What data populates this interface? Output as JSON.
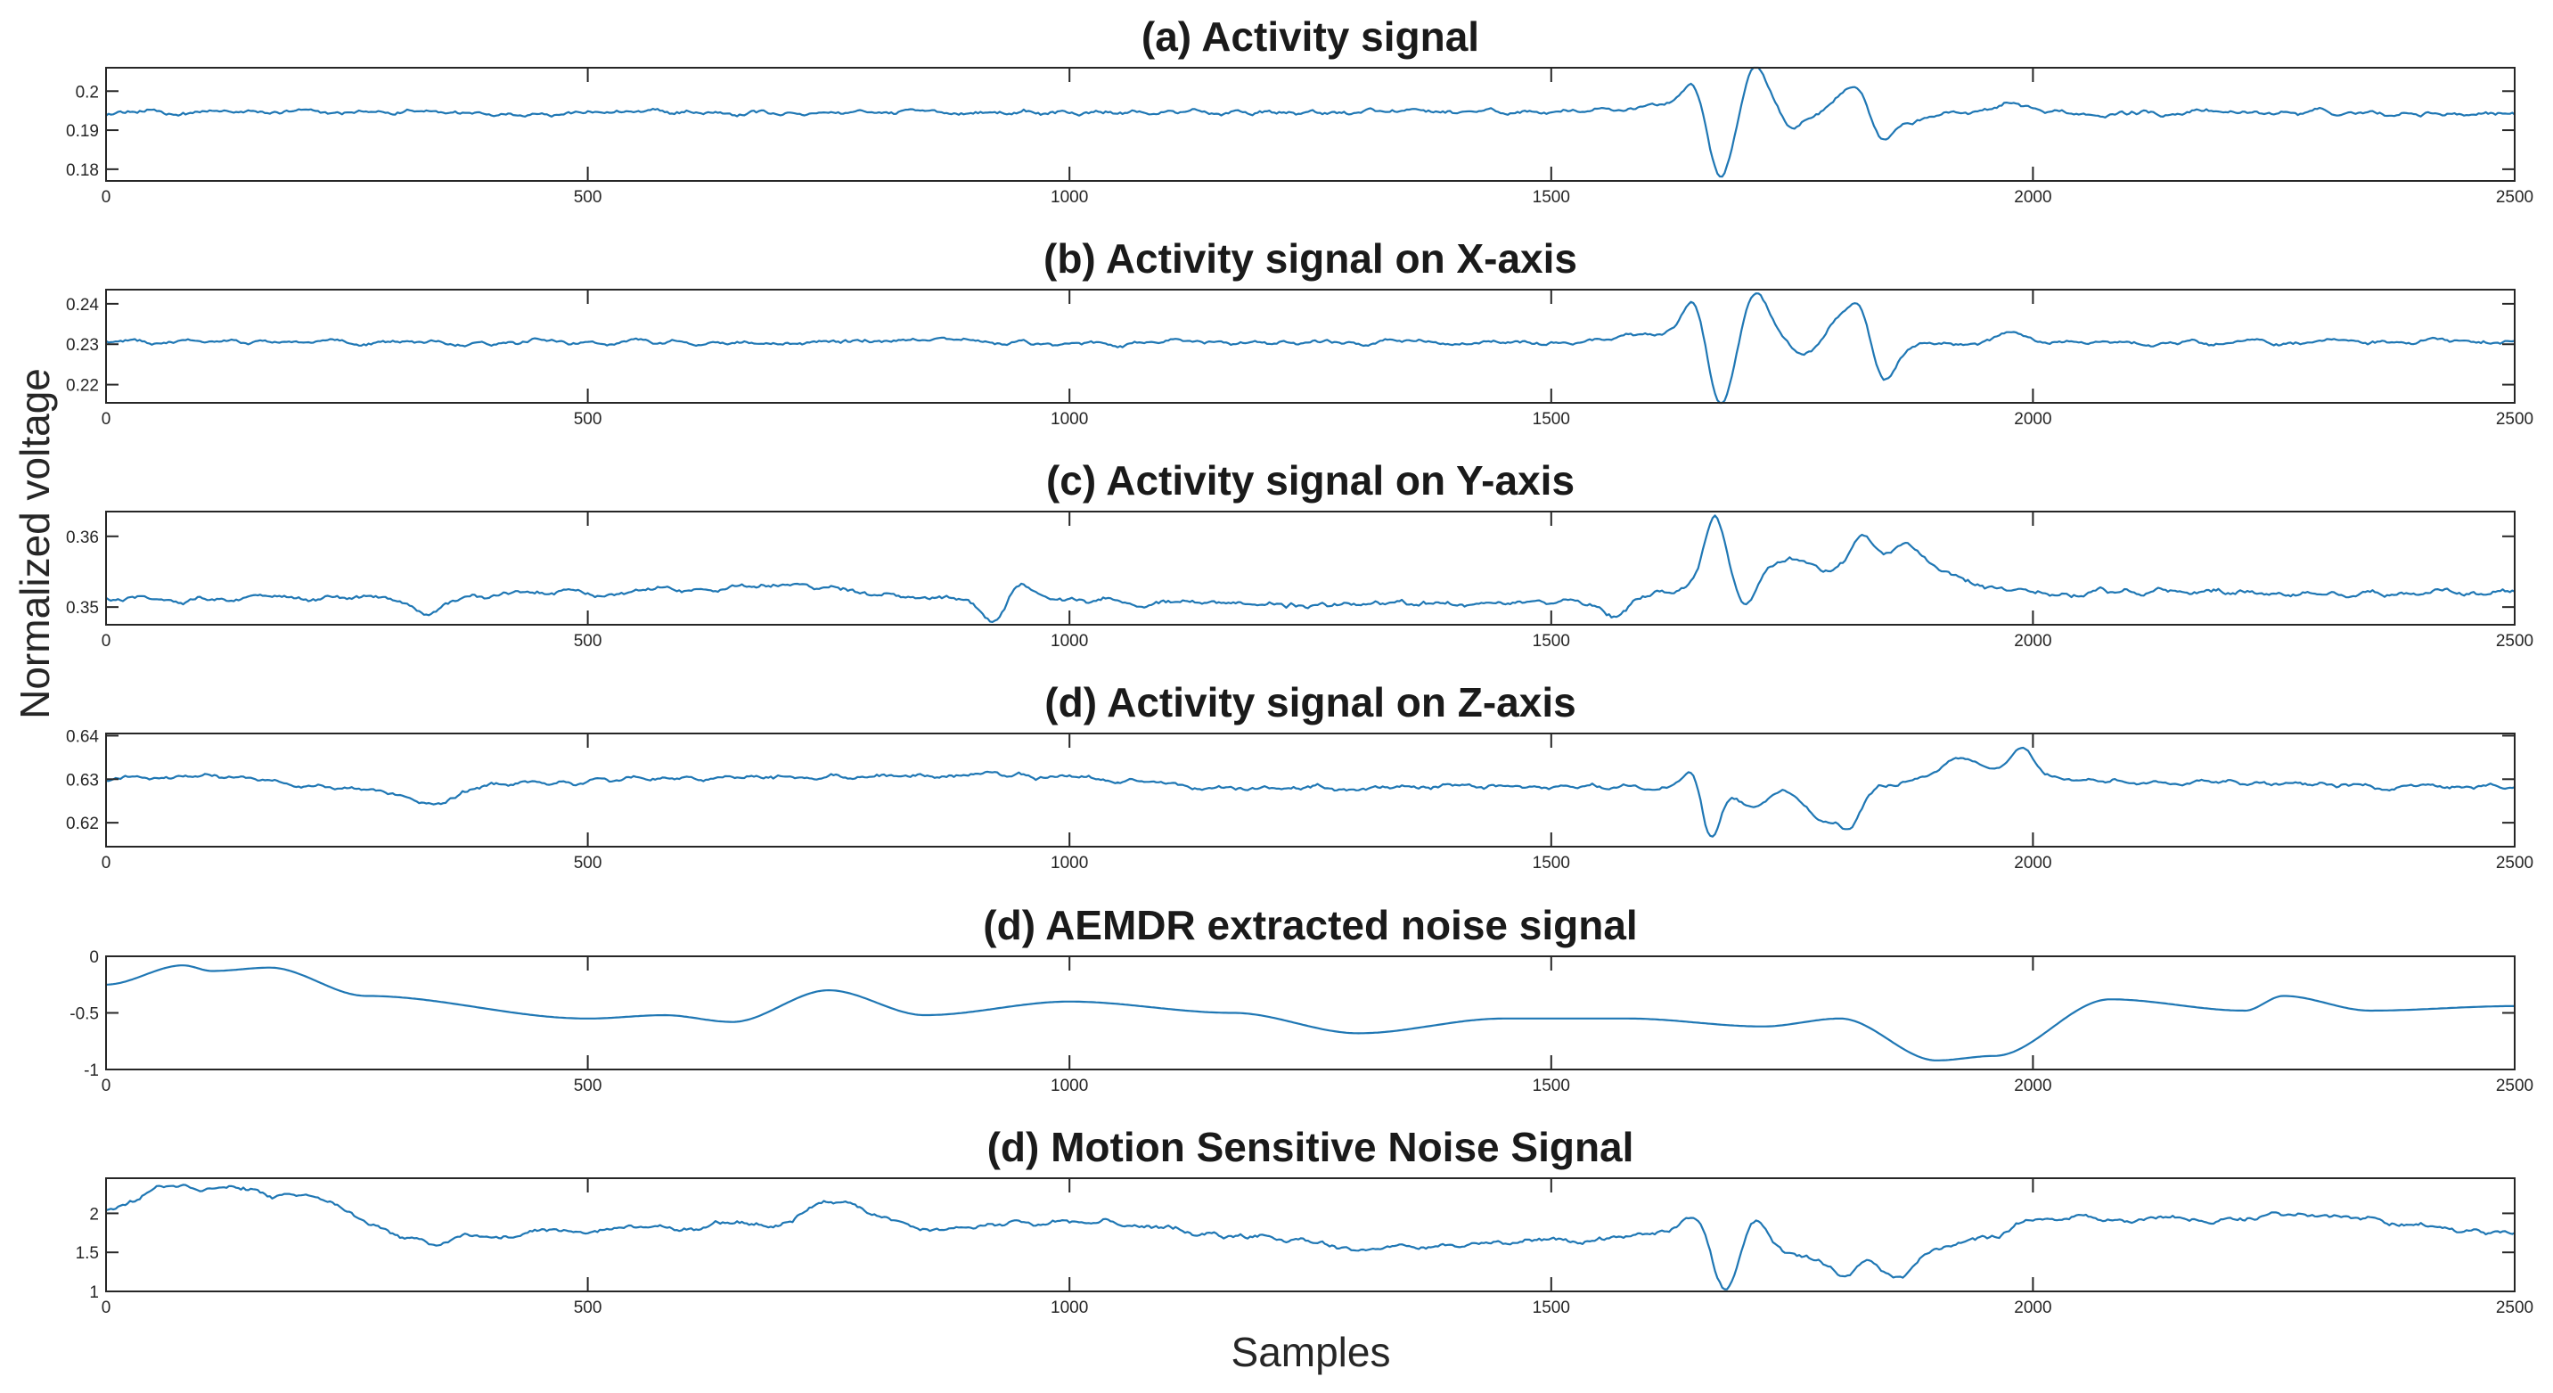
{
  "chart_data": {
    "type": "line",
    "ylabel": "Normalized voltage",
    "xlabel": "Samples",
    "line_color": "#1f77b4",
    "xlim": [
      0,
      2500
    ],
    "xticks": [
      0,
      500,
      1000,
      1500,
      2000,
      2500
    ],
    "panels": [
      {
        "title": "(a) Activity signal",
        "ylim": [
          0.177,
          0.206
        ],
        "yticks": [
          0.18,
          0.19,
          0.2
        ],
        "ytick_labels": [
          "0.18",
          "0.19",
          "0.2"
        ],
        "base": 0.1945,
        "noise": 0.0009,
        "trend": [],
        "events": [
          [
            1620,
            0.002,
            40
          ],
          [
            1650,
            0.0085,
            12
          ],
          [
            1675,
            -0.019,
            14
          ],
          [
            1712,
            0.012,
            14
          ],
          [
            1750,
            -0.004,
            14
          ],
          [
            1800,
            0.004,
            12
          ],
          [
            1820,
            0.006,
            10
          ],
          [
            1845,
            -0.007,
            12
          ],
          [
            1875,
            -0.002,
            14
          ],
          [
            1975,
            0.002,
            12
          ]
        ]
      },
      {
        "title": "(b) Activity signal on X-axis",
        "ylim": [
          0.2155,
          0.2435
        ],
        "yticks": [
          0.22,
          0.23,
          0.24
        ],
        "ytick_labels": [
          "0.22",
          "0.23",
          "0.24"
        ],
        "base": 0.2305,
        "noise": 0.0008,
        "trend": [],
        "events": [
          [
            1620,
            0.002,
            40
          ],
          [
            1650,
            0.011,
            12
          ],
          [
            1675,
            -0.018,
            14
          ],
          [
            1712,
            0.013,
            14
          ],
          [
            1760,
            -0.003,
            14
          ],
          [
            1800,
            0.006,
            12
          ],
          [
            1820,
            0.008,
            10
          ],
          [
            1845,
            -0.009,
            12
          ],
          [
            1880,
            -0.001,
            14
          ],
          [
            1975,
            0.002,
            12
          ]
        ]
      },
      {
        "title": "(c) Activity signal on Y-axis",
        "ylim": [
          0.3475,
          0.3635
        ],
        "yticks": [
          0.35,
          0.36
        ],
        "ytick_labels": [
          "0.35",
          "0.36"
        ],
        "base": 0.3513,
        "noise": 0.0006,
        "trend": [
          [
            0,
            0.351
          ],
          [
            350,
            0.3515
          ],
          [
            700,
            0.353
          ],
          [
            900,
            0.351
          ],
          [
            1200,
            0.3505
          ],
          [
            1500,
            0.3505
          ],
          [
            1600,
            0.3515
          ],
          [
            1700,
            0.3545
          ],
          [
            1850,
            0.356
          ],
          [
            2000,
            0.352
          ],
          [
            2200,
            0.352
          ],
          [
            2500,
            0.352
          ]
        ],
        "events": [
          [
            330,
            -0.0025,
            15
          ],
          [
            920,
            -0.003,
            12
          ],
          [
            950,
            0.002,
            12
          ],
          [
            1565,
            -0.0025,
            12
          ],
          [
            1670,
            0.0095,
            10
          ],
          [
            1700,
            -0.004,
            10
          ],
          [
            1750,
            0.002,
            15
          ],
          [
            1825,
            0.004,
            12
          ],
          [
            1870,
            0.003,
            12
          ]
        ]
      },
      {
        "title": "(d) Activity signal on Z-axis",
        "ylim": [
          0.6145,
          0.6405
        ],
        "yticks": [
          0.62,
          0.63,
          0.64
        ],
        "ytick_labels": [
          "0.62",
          "0.63",
          "0.64"
        ],
        "base": 0.6295,
        "noise": 0.0008,
        "trend": [
          [
            0,
            0.63
          ],
          [
            100,
            0.6305
          ],
          [
            250,
            0.6285
          ],
          [
            340,
            0.6245
          ],
          [
            400,
            0.629
          ],
          [
            700,
            0.6305
          ],
          [
            900,
            0.631
          ],
          [
            1200,
            0.628
          ],
          [
            1500,
            0.6285
          ],
          [
            1650,
            0.628
          ],
          [
            1800,
            0.627
          ],
          [
            1950,
            0.632
          ],
          [
            2050,
            0.6295
          ],
          [
            2500,
            0.628
          ]
        ],
        "events": [
          [
            1650,
            0.006,
            10
          ],
          [
            1665,
            -0.013,
            10
          ],
          [
            1710,
            -0.004,
            15
          ],
          [
            1780,
            -0.006,
            15
          ],
          [
            1810,
            -0.007,
            12
          ],
          [
            1920,
            0.004,
            15
          ],
          [
            1990,
            0.005,
            12
          ]
        ]
      },
      {
        "title": "(d) AEMDR extracted noise signal",
        "ylim": [
          -1,
          0
        ],
        "yticks": [
          -1,
          -0.5,
          0
        ],
        "ytick_labels": [
          "-1",
          "-0.5",
          "0"
        ],
        "base": 0,
        "noise": 0,
        "events": [],
        "trend": [
          [
            0,
            -0.25
          ],
          [
            80,
            -0.08
          ],
          [
            110,
            -0.13
          ],
          [
            170,
            -0.1
          ],
          [
            270,
            -0.35
          ],
          [
            500,
            -0.55
          ],
          [
            580,
            -0.52
          ],
          [
            650,
            -0.58
          ],
          [
            750,
            -0.3
          ],
          [
            850,
            -0.52
          ],
          [
            1000,
            -0.4
          ],
          [
            1170,
            -0.5
          ],
          [
            1300,
            -0.68
          ],
          [
            1450,
            -0.55
          ],
          [
            1580,
            -0.55
          ],
          [
            1720,
            -0.62
          ],
          [
            1800,
            -0.55
          ],
          [
            1900,
            -0.92
          ],
          [
            1960,
            -0.88
          ],
          [
            2080,
            -0.38
          ],
          [
            2220,
            -0.48
          ],
          [
            2260,
            -0.35
          ],
          [
            2350,
            -0.48
          ],
          [
            2500,
            -0.44
          ]
        ]
      },
      {
        "title": "(d) Motion Sensitive Noise Signal",
        "ylim": [
          1,
          2.45
        ],
        "yticks": [
          1,
          1.5,
          2
        ],
        "ytick_labels": [
          "1",
          "1.5",
          "2"
        ],
        "base": 1.8,
        "noise": 0.05,
        "trend": [
          [
            0,
            2.05
          ],
          [
            70,
            2.35
          ],
          [
            200,
            2.25
          ],
          [
            330,
            1.65
          ],
          [
            500,
            1.8
          ],
          [
            700,
            1.85
          ],
          [
            750,
            2.15
          ],
          [
            850,
            1.8
          ],
          [
            1000,
            1.9
          ],
          [
            1200,
            1.7
          ],
          [
            1300,
            1.55
          ],
          [
            1500,
            1.65
          ],
          [
            1620,
            1.75
          ],
          [
            1700,
            1.5
          ],
          [
            1850,
            1.4
          ],
          [
            1960,
            1.7
          ],
          [
            2050,
            1.95
          ],
          [
            2200,
            1.9
          ],
          [
            2260,
            2.0
          ],
          [
            2500,
            1.75
          ]
        ],
        "events": [
          [
            1650,
            0.3,
            12
          ],
          [
            1680,
            -0.55,
            12
          ],
          [
            1712,
            0.45,
            12
          ],
          [
            1800,
            -0.25,
            14
          ],
          [
            1860,
            -0.25,
            14
          ],
          [
            2000,
            0.15,
            15
          ]
        ]
      }
    ]
  }
}
